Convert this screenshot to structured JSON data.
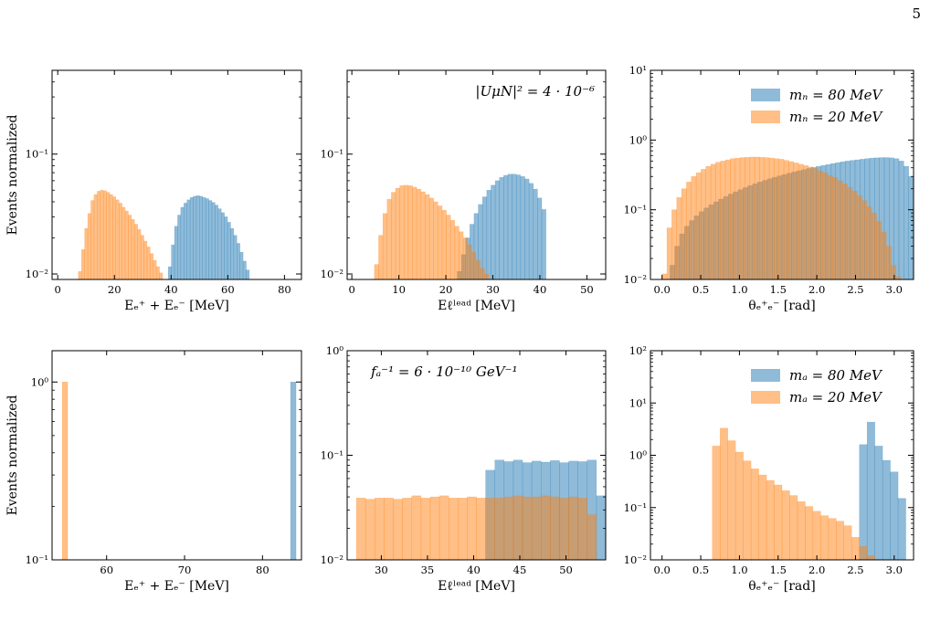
{
  "page": {
    "number": "5"
  },
  "colors": {
    "blue": "#1f77b4",
    "orange": "#ff7f0e"
  },
  "chart_data": [
    {
      "type": "histogram",
      "yscale": "log",
      "xlim": [
        -2,
        86
      ],
      "ylim": [
        0.009,
        0.5
      ],
      "xticks": [
        0,
        20,
        40,
        60,
        80
      ],
      "xticklabels": [
        "0",
        "20",
        "40",
        "60",
        "80"
      ],
      "yticks": [
        0.01,
        0.1
      ],
      "yticklabels": [
        "10⁻²",
        "10⁻¹"
      ],
      "xlabel": "Eₑ⁺ + Eₑ⁻ [MeV]",
      "ylabel": "Events normalized",
      "annotation": "",
      "bin_width": 1.1,
      "series": [
        {
          "color": "#ff7f0e",
          "x_start": 7.3,
          "values": [
            0.0105,
            0.016,
            0.024,
            0.032,
            0.041,
            0.046,
            0.049,
            0.05,
            0.0495,
            0.048,
            0.046,
            0.044,
            0.0415,
            0.039,
            0.036,
            0.0335,
            0.031,
            0.0285,
            0.026,
            0.0235,
            0.021,
            0.0188,
            0.0168,
            0.0148,
            0.013,
            0.0115,
            0.0102
          ]
        },
        {
          "color": "#1f77b4",
          "x_start": 39.0,
          "values": [
            0.0115,
            0.0175,
            0.025,
            0.031,
            0.036,
            0.039,
            0.0415,
            0.0435,
            0.0445,
            0.045,
            0.0445,
            0.0435,
            0.0425,
            0.041,
            0.0395,
            0.0375,
            0.035,
            0.0325,
            0.03,
            0.027,
            0.024,
            0.021,
            0.018,
            0.0152,
            0.0128,
            0.0108
          ]
        }
      ]
    },
    {
      "type": "histogram",
      "yscale": "log",
      "xlim": [
        -1,
        54
      ],
      "ylim": [
        0.009,
        0.5
      ],
      "xticks": [
        0,
        10,
        20,
        30,
        40,
        50
      ],
      "xticklabels": [
        "0",
        "10",
        "20",
        "30",
        "40",
        "50"
      ],
      "yticks": [
        0.01,
        0.1
      ],
      "yticklabels": [
        "10⁻²",
        "10⁻¹"
      ],
      "xlabel": "Eℓˡᵉᵃᵈ [MeV]",
      "ylabel": "",
      "annotation": "|UμN|² = 4 · 10⁻⁶",
      "bin_width": 0.9,
      "series": [
        {
          "color": "#ff7f0e",
          "x_start": 4.8,
          "values": [
            0.012,
            0.021,
            0.032,
            0.042,
            0.048,
            0.052,
            0.0545,
            0.055,
            0.0545,
            0.053,
            0.051,
            0.0485,
            0.046,
            0.043,
            0.04,
            0.037,
            0.034,
            0.031,
            0.028,
            0.025,
            0.0225,
            0.02,
            0.0175,
            0.0152,
            0.013,
            0.0112,
            0.01
          ]
        },
        {
          "color": "#1f77b4",
          "x_start": 22.4,
          "values": [
            0.0105,
            0.0145,
            0.02,
            0.026,
            0.032,
            0.038,
            0.044,
            0.05,
            0.055,
            0.06,
            0.064,
            0.0665,
            0.068,
            0.068,
            0.067,
            0.065,
            0.062,
            0.057,
            0.051,
            0.043,
            0.0345
          ]
        }
      ]
    },
    {
      "type": "histogram",
      "yscale": "log",
      "xlim": [
        -0.15,
        3.25
      ],
      "ylim": [
        0.01,
        10
      ],
      "xticks": [
        0,
        0.5,
        1,
        1.5,
        2,
        2.5,
        3
      ],
      "xticklabels": [
        "0.0",
        "0.5",
        "1.0",
        "1.5",
        "2.0",
        "2.5",
        "3.0"
      ],
      "yticks": [
        0.01,
        0.1,
        1,
        10
      ],
      "yticklabels": [
        "10⁻²",
        "10⁻¹",
        "10⁰",
        "10¹"
      ],
      "xlabel": "θₑ⁺ₑ⁻ [rad]",
      "ylabel": "",
      "annotation": "",
      "legend": [
        {
          "label": "mₙ = 80 MeV",
          "color": "#1f77b4"
        },
        {
          "label": "mₙ = 20 MeV",
          "color": "#ff7f0e"
        }
      ],
      "bin_width": 0.063,
      "series": [
        {
          "color": "#ff7f0e",
          "x_start": 0.0,
          "values": [
            0.012,
            0.055,
            0.1,
            0.15,
            0.2,
            0.25,
            0.3,
            0.34,
            0.38,
            0.42,
            0.45,
            0.48,
            0.5,
            0.52,
            0.54,
            0.55,
            0.56,
            0.565,
            0.57,
            0.57,
            0.565,
            0.56,
            0.55,
            0.54,
            0.53,
            0.51,
            0.49,
            0.47,
            0.45,
            0.43,
            0.41,
            0.39,
            0.36,
            0.34,
            0.31,
            0.29,
            0.26,
            0.235,
            0.21,
            0.185,
            0.16,
            0.135,
            0.11,
            0.09,
            0.068,
            0.048,
            0.03,
            0.016,
            0.011
          ]
        },
        {
          "color": "#1f77b4",
          "x_start": 0.1,
          "values": [
            0.016,
            0.03,
            0.045,
            0.058,
            0.07,
            0.082,
            0.094,
            0.106,
            0.118,
            0.13,
            0.142,
            0.155,
            0.168,
            0.181,
            0.194,
            0.208,
            0.222,
            0.236,
            0.25,
            0.264,
            0.278,
            0.292,
            0.306,
            0.32,
            0.334,
            0.348,
            0.362,
            0.376,
            0.39,
            0.404,
            0.418,
            0.432,
            0.446,
            0.46,
            0.474,
            0.488,
            0.5,
            0.51,
            0.52,
            0.53,
            0.54,
            0.55,
            0.555,
            0.56,
            0.56,
            0.555,
            0.54,
            0.5,
            0.42,
            0.3,
            0.16
          ]
        }
      ]
    },
    {
      "type": "histogram",
      "yscale": "log",
      "xlim": [
        53,
        85
      ],
      "ylim": [
        0.1,
        1.5
      ],
      "xticks": [
        60,
        70,
        80
      ],
      "xticklabels": [
        "60",
        "70",
        "80"
      ],
      "yticks": [
        0.1,
        1
      ],
      "yticklabels": [
        "10⁻¹",
        "10⁰"
      ],
      "xlabel": "Eₑ⁺ + Eₑ⁻ [MeV]",
      "ylabel": "Events normalized",
      "annotation": "",
      "bin_width": 0.7,
      "series": [
        {
          "color": "#ff7f0e",
          "x_start": 54.3,
          "values": [
            1.0
          ]
        },
        {
          "color": "#1f77b4",
          "x_start": 83.6,
          "values": [
            1.0
          ]
        }
      ]
    },
    {
      "type": "histogram",
      "yscale": "log",
      "xlim": [
        26.3,
        54.3
      ],
      "ylim": [
        0.01,
        1
      ],
      "xticks": [
        30,
        35,
        40,
        45,
        50
      ],
      "xticklabels": [
        "30",
        "35",
        "40",
        "45",
        "50"
      ],
      "yticks": [
        0.01,
        0.1,
        1
      ],
      "yticklabels": [
        "10⁻²",
        "10⁻¹",
        "10⁰"
      ],
      "xlabel": "Eℓˡᵉᵃᵈ [MeV]",
      "ylabel": "",
      "annotation": "fₐ⁻¹ = 6 · 10⁻¹⁰ GeV⁻¹",
      "bin_width": 1.0,
      "series": [
        {
          "color": "#ff7f0e",
          "x_start": 27.3,
          "values": [
            0.039,
            0.038,
            0.039,
            0.039,
            0.038,
            0.039,
            0.041,
            0.039,
            0.04,
            0.041,
            0.039,
            0.039,
            0.04,
            0.039,
            0.039,
            0.039,
            0.04,
            0.041,
            0.04,
            0.04,
            0.041,
            0.04,
            0.039,
            0.04,
            0.039,
            0.027
          ]
        },
        {
          "color": "#1f77b4",
          "x_start": 41.3,
          "values": [
            0.072,
            0.09,
            0.087,
            0.09,
            0.085,
            0.088,
            0.086,
            0.089,
            0.085,
            0.088,
            0.087,
            0.09,
            0.041
          ]
        }
      ]
    },
    {
      "type": "histogram",
      "yscale": "log",
      "xlim": [
        -0.15,
        3.25
      ],
      "ylim": [
        0.01,
        100
      ],
      "xticks": [
        0,
        0.5,
        1,
        1.5,
        2,
        2.5,
        3
      ],
      "xticklabels": [
        "0.0",
        "0.5",
        "1.0",
        "1.5",
        "2.0",
        "2.5",
        "3.0"
      ],
      "yticks": [
        0.01,
        0.1,
        1,
        10,
        100
      ],
      "yticklabels": [
        "10⁻²",
        "10⁻¹",
        "10⁰",
        "10¹",
        "10²"
      ],
      "xlabel": "θₑ⁺ₑ⁻ [rad]",
      "ylabel": "",
      "annotation": "",
      "legend": [
        {
          "label": "mₐ = 80 MeV",
          "color": "#1f77b4"
        },
        {
          "label": "mₐ = 20 MeV",
          "color": "#ff7f0e"
        }
      ],
      "bin_width": 0.1,
      "series": [
        {
          "color": "#ff7f0e",
          "x_start": 0.65,
          "values": [
            1.5,
            3.3,
            1.9,
            1.15,
            0.78,
            0.55,
            0.42,
            0.33,
            0.27,
            0.21,
            0.17,
            0.13,
            0.105,
            0.085,
            0.07,
            0.062,
            0.055,
            0.045,
            0.027,
            0.018,
            0.012
          ]
        },
        {
          "color": "#1f77b4",
          "x_start": 2.55,
          "values": [
            1.6,
            4.3,
            1.5,
            0.8,
            0.48,
            0.15
          ]
        }
      ]
    }
  ]
}
